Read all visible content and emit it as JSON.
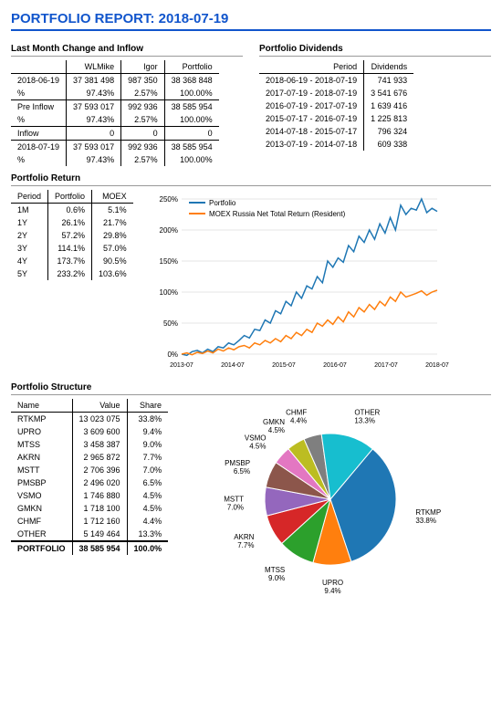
{
  "title": "PORTFOLIO REPORT: 2018-07-19",
  "monthChange": {
    "heading": "Last Month Change and Inflow",
    "cols": [
      "WLMike",
      "Igor",
      "Portfolio"
    ],
    "rows": [
      {
        "label": "2018-06-19",
        "vals": [
          "37 381 498",
          "987 350",
          "38 368 848"
        ]
      },
      {
        "label": "%",
        "vals": [
          "97.43%",
          "2.57%",
          "100.00%"
        ]
      },
      {
        "label": "Pre Inflow",
        "vals": [
          "37 593 017",
          "992 936",
          "38 585 954"
        ]
      },
      {
        "label": "%",
        "vals": [
          "97.43%",
          "2.57%",
          "100.00%"
        ]
      },
      {
        "label": "Inflow",
        "vals": [
          "0",
          "0",
          "0"
        ]
      },
      {
        "label": "2018-07-19",
        "vals": [
          "37 593 017",
          "992 936",
          "38 585 954"
        ]
      },
      {
        "label": "%",
        "vals": [
          "97.43%",
          "2.57%",
          "100.00%"
        ]
      }
    ],
    "sepAfter": [
      1,
      3,
      4
    ]
  },
  "dividends": {
    "heading": "Portfolio Dividends",
    "cols": [
      "Period",
      "Dividends"
    ],
    "rows": [
      [
        "2018-06-19 - 2018-07-19",
        "741 933"
      ],
      [
        "2017-07-19 - 2018-07-19",
        "3 541 676"
      ],
      [
        "2016-07-19 - 2017-07-19",
        "1 639 416"
      ],
      [
        "2015-07-17 - 2016-07-19",
        "1 225 813"
      ],
      [
        "2014-07-18 - 2015-07-17",
        "796 324"
      ],
      [
        "2013-07-19 - 2014-07-18",
        "609 338"
      ]
    ]
  },
  "returns": {
    "heading": "Portfolio Return",
    "cols": [
      "Period",
      "Portfolio",
      "MOEX"
    ],
    "rows": [
      [
        "1M",
        "0.6%",
        "5.1%"
      ],
      [
        "1Y",
        "26.1%",
        "21.7%"
      ],
      [
        "2Y",
        "57.2%",
        "29.8%"
      ],
      [
        "3Y",
        "114.1%",
        "57.0%"
      ],
      [
        "4Y",
        "173.7%",
        "90.5%"
      ],
      [
        "5Y",
        "233.2%",
        "103.6%"
      ]
    ]
  },
  "lineChart": {
    "series": [
      {
        "name": "Portfolio",
        "color": "#1f77b4"
      },
      {
        "name": "MOEX Russia Net Total Return (Resident)",
        "color": "#ff7f0e"
      }
    ],
    "xlabels": [
      "2013-07",
      "2014-07",
      "2015-07",
      "2016-07",
      "2017-07",
      "2018-07"
    ],
    "ylabels": [
      "0%",
      "50%",
      "100%",
      "150%",
      "200%",
      "250%"
    ],
    "ylim": [
      0,
      250
    ],
    "grid": "#cccccc",
    "portfolio": [
      0,
      -2,
      4,
      6,
      2,
      8,
      4,
      12,
      10,
      18,
      15,
      22,
      30,
      26,
      40,
      38,
      55,
      50,
      70,
      65,
      85,
      78,
      100,
      90,
      110,
      105,
      125,
      115,
      150,
      140,
      155,
      148,
      175,
      165,
      190,
      180,
      200,
      185,
      210,
      195,
      220,
      200,
      240,
      225,
      235,
      232,
      250,
      228,
      235,
      230
    ],
    "moex": [
      0,
      2,
      -1,
      3,
      1,
      5,
      2,
      8,
      5,
      10,
      7,
      12,
      14,
      10,
      18,
      15,
      22,
      18,
      25,
      20,
      30,
      25,
      35,
      30,
      40,
      35,
      50,
      45,
      55,
      48,
      60,
      52,
      68,
      60,
      75,
      68,
      80,
      72,
      85,
      78,
      92,
      85,
      100,
      92,
      95,
      98,
      102,
      95,
      100,
      103
    ]
  },
  "structure": {
    "heading": "Portfolio Structure",
    "cols": [
      "Name",
      "Value",
      "Share"
    ],
    "rows": [
      [
        "RTKMP",
        "13 023 075",
        "33.8%"
      ],
      [
        "UPRO",
        "3 609 600",
        "9.4%"
      ],
      [
        "MTSS",
        "3 458 387",
        "9.0%"
      ],
      [
        "AKRN",
        "2 965 872",
        "7.7%"
      ],
      [
        "MSTT",
        "2 706 396",
        "7.0%"
      ],
      [
        "PMSBP",
        "2 496 020",
        "6.5%"
      ],
      [
        "VSMO",
        "1 746 880",
        "4.5%"
      ],
      [
        "GMKN",
        "1 718 100",
        "4.5%"
      ],
      [
        "CHMF",
        "1 712 160",
        "4.4%"
      ],
      [
        "OTHER",
        "5 149 464",
        "13.3%"
      ]
    ],
    "total": [
      "PORTFOLIO",
      "38 585 954",
      "100.0%"
    ]
  },
  "pie": {
    "slices": [
      {
        "label": "RTKMP",
        "sub": "33.8%",
        "value": 33.8,
        "color": "#1f77b4"
      },
      {
        "label": "UPRO",
        "sub": "9.4%",
        "value": 9.4,
        "color": "#ff7f0e"
      },
      {
        "label": "MTSS",
        "sub": "9.0%",
        "value": 9.0,
        "color": "#2ca02c"
      },
      {
        "label": "AKRN",
        "sub": "7.7%",
        "value": 7.7,
        "color": "#d62728"
      },
      {
        "label": "MSTT",
        "sub": "7.0%",
        "value": 7.0,
        "color": "#9467bd"
      },
      {
        "label": "PMSBP",
        "sub": "6.5%",
        "value": 6.5,
        "color": "#8c564b"
      },
      {
        "label": "VSMO",
        "sub": "4.5%",
        "value": 4.5,
        "color": "#e377c2"
      },
      {
        "label": "GMKN",
        "sub": "4.5%",
        "value": 4.5,
        "color": "#bcbd22"
      },
      {
        "label": "CHMF",
        "sub": "4.4%",
        "value": 4.4,
        "color": "#7f7f7f"
      },
      {
        "label": "OTHER",
        "sub": "13.3%",
        "value": 13.3,
        "color": "#17becf"
      }
    ]
  }
}
